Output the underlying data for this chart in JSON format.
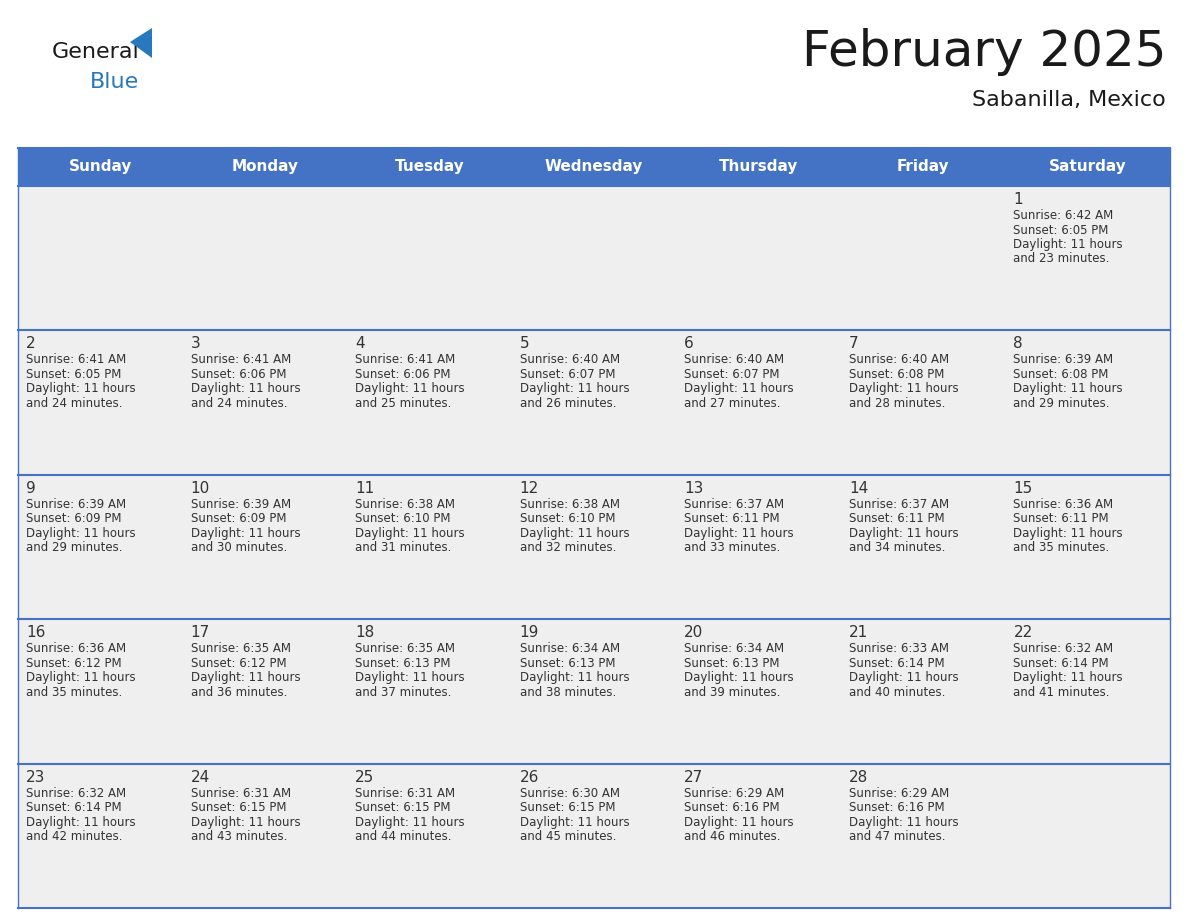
{
  "title": "February 2025",
  "subtitle": "Sabanilla, Mexico",
  "days_of_week": [
    "Sunday",
    "Monday",
    "Tuesday",
    "Wednesday",
    "Thursday",
    "Friday",
    "Saturday"
  ],
  "header_bg": "#4472C4",
  "header_text_color": "#FFFFFF",
  "cell_bg": "#EFEFEF",
  "cell_border_color": "#4472C4",
  "title_color": "#1a1a1a",
  "day_number_color": "#333333",
  "info_text_color": "#333333",
  "logo_general_color": "#1a1a1a",
  "logo_blue_color": "#2878BE",
  "calendar_data": [
    {
      "day": 1,
      "col": 6,
      "row": 0,
      "sunrise": "6:42 AM",
      "sunset": "6:05 PM",
      "daylight_hours": 11,
      "daylight_minutes": 23
    },
    {
      "day": 2,
      "col": 0,
      "row": 1,
      "sunrise": "6:41 AM",
      "sunset": "6:05 PM",
      "daylight_hours": 11,
      "daylight_minutes": 24
    },
    {
      "day": 3,
      "col": 1,
      "row": 1,
      "sunrise": "6:41 AM",
      "sunset": "6:06 PM",
      "daylight_hours": 11,
      "daylight_minutes": 24
    },
    {
      "day": 4,
      "col": 2,
      "row": 1,
      "sunrise": "6:41 AM",
      "sunset": "6:06 PM",
      "daylight_hours": 11,
      "daylight_minutes": 25
    },
    {
      "day": 5,
      "col": 3,
      "row": 1,
      "sunrise": "6:40 AM",
      "sunset": "6:07 PM",
      "daylight_hours": 11,
      "daylight_minutes": 26
    },
    {
      "day": 6,
      "col": 4,
      "row": 1,
      "sunrise": "6:40 AM",
      "sunset": "6:07 PM",
      "daylight_hours": 11,
      "daylight_minutes": 27
    },
    {
      "day": 7,
      "col": 5,
      "row": 1,
      "sunrise": "6:40 AM",
      "sunset": "6:08 PM",
      "daylight_hours": 11,
      "daylight_minutes": 28
    },
    {
      "day": 8,
      "col": 6,
      "row": 1,
      "sunrise": "6:39 AM",
      "sunset": "6:08 PM",
      "daylight_hours": 11,
      "daylight_minutes": 29
    },
    {
      "day": 9,
      "col": 0,
      "row": 2,
      "sunrise": "6:39 AM",
      "sunset": "6:09 PM",
      "daylight_hours": 11,
      "daylight_minutes": 29
    },
    {
      "day": 10,
      "col": 1,
      "row": 2,
      "sunrise": "6:39 AM",
      "sunset": "6:09 PM",
      "daylight_hours": 11,
      "daylight_minutes": 30
    },
    {
      "day": 11,
      "col": 2,
      "row": 2,
      "sunrise": "6:38 AM",
      "sunset": "6:10 PM",
      "daylight_hours": 11,
      "daylight_minutes": 31
    },
    {
      "day": 12,
      "col": 3,
      "row": 2,
      "sunrise": "6:38 AM",
      "sunset": "6:10 PM",
      "daylight_hours": 11,
      "daylight_minutes": 32
    },
    {
      "day": 13,
      "col": 4,
      "row": 2,
      "sunrise": "6:37 AM",
      "sunset": "6:11 PM",
      "daylight_hours": 11,
      "daylight_minutes": 33
    },
    {
      "day": 14,
      "col": 5,
      "row": 2,
      "sunrise": "6:37 AM",
      "sunset": "6:11 PM",
      "daylight_hours": 11,
      "daylight_minutes": 34
    },
    {
      "day": 15,
      "col": 6,
      "row": 2,
      "sunrise": "6:36 AM",
      "sunset": "6:11 PM",
      "daylight_hours": 11,
      "daylight_minutes": 35
    },
    {
      "day": 16,
      "col": 0,
      "row": 3,
      "sunrise": "6:36 AM",
      "sunset": "6:12 PM",
      "daylight_hours": 11,
      "daylight_minutes": 35
    },
    {
      "day": 17,
      "col": 1,
      "row": 3,
      "sunrise": "6:35 AM",
      "sunset": "6:12 PM",
      "daylight_hours": 11,
      "daylight_minutes": 36
    },
    {
      "day": 18,
      "col": 2,
      "row": 3,
      "sunrise": "6:35 AM",
      "sunset": "6:13 PM",
      "daylight_hours": 11,
      "daylight_minutes": 37
    },
    {
      "day": 19,
      "col": 3,
      "row": 3,
      "sunrise": "6:34 AM",
      "sunset": "6:13 PM",
      "daylight_hours": 11,
      "daylight_minutes": 38
    },
    {
      "day": 20,
      "col": 4,
      "row": 3,
      "sunrise": "6:34 AM",
      "sunset": "6:13 PM",
      "daylight_hours": 11,
      "daylight_minutes": 39
    },
    {
      "day": 21,
      "col": 5,
      "row": 3,
      "sunrise": "6:33 AM",
      "sunset": "6:14 PM",
      "daylight_hours": 11,
      "daylight_minutes": 40
    },
    {
      "day": 22,
      "col": 6,
      "row": 3,
      "sunrise": "6:32 AM",
      "sunset": "6:14 PM",
      "daylight_hours": 11,
      "daylight_minutes": 41
    },
    {
      "day": 23,
      "col": 0,
      "row": 4,
      "sunrise": "6:32 AM",
      "sunset": "6:14 PM",
      "daylight_hours": 11,
      "daylight_minutes": 42
    },
    {
      "day": 24,
      "col": 1,
      "row": 4,
      "sunrise": "6:31 AM",
      "sunset": "6:15 PM",
      "daylight_hours": 11,
      "daylight_minutes": 43
    },
    {
      "day": 25,
      "col": 2,
      "row": 4,
      "sunrise": "6:31 AM",
      "sunset": "6:15 PM",
      "daylight_hours": 11,
      "daylight_minutes": 44
    },
    {
      "day": 26,
      "col": 3,
      "row": 4,
      "sunrise": "6:30 AM",
      "sunset": "6:15 PM",
      "daylight_hours": 11,
      "daylight_minutes": 45
    },
    {
      "day": 27,
      "col": 4,
      "row": 4,
      "sunrise": "6:29 AM",
      "sunset": "6:16 PM",
      "daylight_hours": 11,
      "daylight_minutes": 46
    },
    {
      "day": 28,
      "col": 5,
      "row": 4,
      "sunrise": "6:29 AM",
      "sunset": "6:16 PM",
      "daylight_hours": 11,
      "daylight_minutes": 47
    }
  ]
}
